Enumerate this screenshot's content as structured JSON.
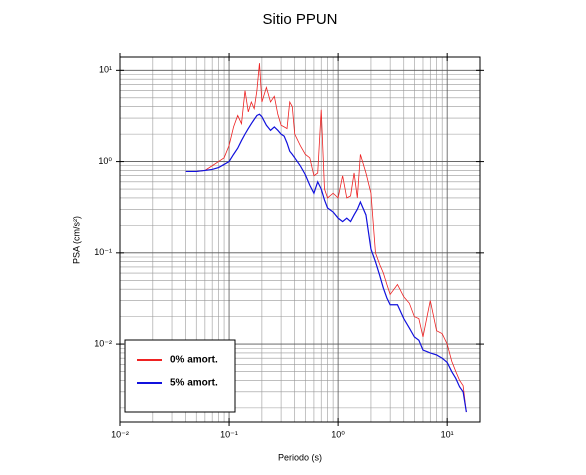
{
  "chart_data": {
    "type": "line",
    "title": "Sitio PPUN",
    "xlabel": "Periodo (s)",
    "ylabel": "PSA (cm/s²)",
    "xscale": "log",
    "yscale": "log",
    "grid": true,
    "legend": "lower left",
    "xlim": [
      0.01,
      20
    ],
    "ylim": [
      0.0014,
      14
    ],
    "xticks": [
      {
        "value": 0.01,
        "label": "10⁻²"
      },
      {
        "value": 0.1,
        "label": "10⁻¹"
      },
      {
        "value": 1,
        "label": "10⁰"
      },
      {
        "value": 10,
        "label": "10¹"
      }
    ],
    "yticks": [
      {
        "value": 0.01,
        "label": "10⁻²"
      },
      {
        "value": 0.1,
        "label": "10⁻¹"
      },
      {
        "value": 1,
        "label": "10⁰"
      },
      {
        "value": 10,
        "label": "10¹"
      }
    ],
    "xminorticks": [
      0.02,
      0.03,
      0.04,
      0.05,
      0.06,
      0.07,
      0.08,
      0.09,
      0.2,
      0.3,
      0.4,
      0.5,
      0.6,
      0.7,
      0.8,
      0.9,
      2,
      3,
      4,
      5,
      6,
      7,
      8,
      9
    ],
    "yminorticks": [
      0.002,
      0.003,
      0.004,
      0.005,
      0.006,
      0.007,
      0.008,
      0.009,
      0.02,
      0.03,
      0.04,
      0.05,
      0.06,
      0.07,
      0.08,
      0.09,
      0.2,
      0.3,
      0.4,
      0.5,
      0.6,
      0.7,
      0.8,
      0.9,
      2,
      3,
      4,
      5,
      6,
      7,
      8,
      9
    ],
    "x": [
      0.04,
      0.05,
      0.06,
      0.07,
      0.08,
      0.09,
      0.1,
      0.11,
      0.12,
      0.13,
      0.14,
      0.15,
      0.16,
      0.17,
      0.18,
      0.19,
      0.2,
      0.22,
      0.24,
      0.26,
      0.28,
      0.3,
      0.32,
      0.34,
      0.36,
      0.38,
      0.4,
      0.45,
      0.5,
      0.55,
      0.6,
      0.65,
      0.7,
      0.75,
      0.8,
      0.9,
      1.0,
      1.1,
      1.2,
      1.3,
      1.4,
      1.5,
      1.6,
      1.8,
      2.0,
      2.2,
      2.4,
      2.6,
      2.8,
      3,
      3.5,
      4,
      4.5,
      5,
      5.5,
      6,
      7,
      8,
      9,
      10,
      11,
      12,
      13,
      14,
      15
    ],
    "series": [
      {
        "name": "0% amort.",
        "color": "#ee2222",
        "values": [
          0.78,
          0.78,
          0.8,
          0.9,
          1.0,
          1.1,
          1.5,
          2.4,
          3.2,
          2.6,
          6.0,
          3.5,
          4.5,
          3.8,
          6.0,
          12,
          4.5,
          6.5,
          4.5,
          5.2,
          3.3,
          2.5,
          2.4,
          2.3,
          4.5,
          4.0,
          2.0,
          1.5,
          1.2,
          1.1,
          0.7,
          0.75,
          3.7,
          0.5,
          0.4,
          0.45,
          0.4,
          0.7,
          0.4,
          0.42,
          0.75,
          0.4,
          1.2,
          0.75,
          0.45,
          0.1,
          0.075,
          0.06,
          0.045,
          0.035,
          0.045,
          0.033,
          0.028,
          0.02,
          0.019,
          0.012,
          0.03,
          0.014,
          0.013,
          0.01,
          0.0065,
          0.005,
          0.004,
          0.0035,
          0.0018
        ]
      },
      {
        "name": "5% amort.",
        "color": "#1111dd",
        "values": [
          0.78,
          0.78,
          0.8,
          0.82,
          0.86,
          0.93,
          1.0,
          1.2,
          1.4,
          1.7,
          2.0,
          2.3,
          2.6,
          2.9,
          3.2,
          3.3,
          3.1,
          2.5,
          2.2,
          2.4,
          2.2,
          2.0,
          1.9,
          1.6,
          1.3,
          1.2,
          1.1,
          0.9,
          0.72,
          0.55,
          0.45,
          0.6,
          0.5,
          0.38,
          0.31,
          0.28,
          0.24,
          0.22,
          0.24,
          0.22,
          0.26,
          0.3,
          0.36,
          0.26,
          0.11,
          0.08,
          0.057,
          0.041,
          0.032,
          0.027,
          0.027,
          0.019,
          0.015,
          0.012,
          0.011,
          0.0086,
          0.008,
          0.0076,
          0.007,
          0.0063,
          0.005,
          0.0042,
          0.0034,
          0.003,
          0.0018
        ]
      }
    ]
  }
}
